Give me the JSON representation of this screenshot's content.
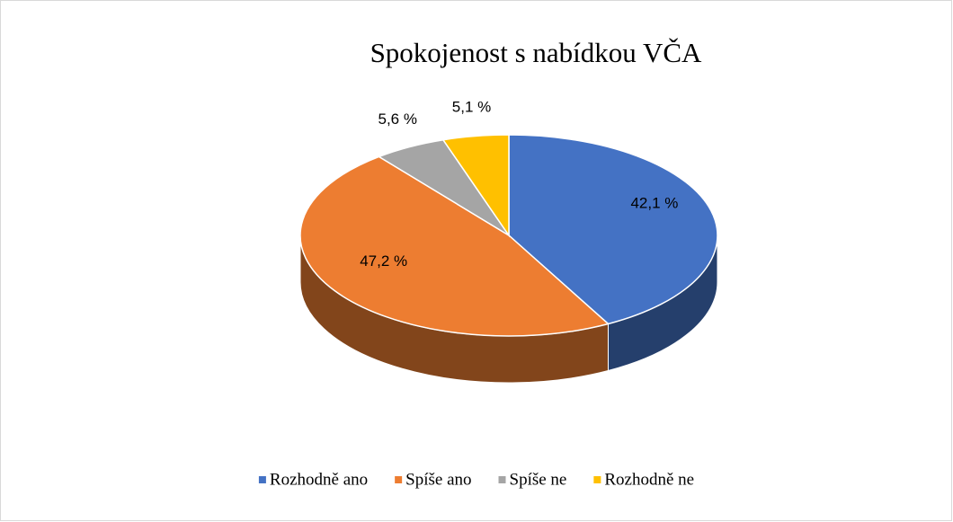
{
  "chart_data": {
    "type": "pie",
    "title": "Spokojenost s nabídkou VČA",
    "categories": [
      "Rozhodně ano",
      "Spíše ano",
      "Spíše ne",
      "Rozhodně ne"
    ],
    "values": [
      42.1,
      47.2,
      5.6,
      5.1
    ],
    "value_labels": [
      "42,1 %",
      "47,2 %",
      "5,6 %",
      "5,1 %"
    ],
    "colors": [
      "#4472c4",
      "#ed7d31",
      "#a5a5a5",
      "#ffc000"
    ],
    "legend": "bottom"
  }
}
